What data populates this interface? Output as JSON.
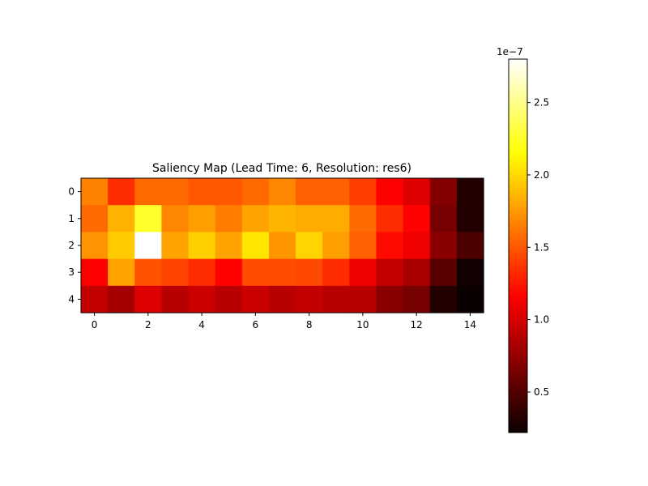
{
  "chart_data": {
    "type": "heatmap",
    "title": "Saliency Map (Lead Time: 6, Resolution: res6)",
    "colormap": "hot",
    "xlabel": "",
    "ylabel": "",
    "x_ticks": [
      0,
      2,
      4,
      6,
      8,
      10,
      12,
      14
    ],
    "y_ticks": [
      0,
      1,
      2,
      3,
      4
    ],
    "rows": 5,
    "cols": 15,
    "vmin": 2.2e-08,
    "vmax": 2.8e-07,
    "values": [
      [
        1.66e-07,
        1.33e-07,
        1.57e-07,
        1.57e-07,
        1.5e-07,
        1.5e-07,
        1.57e-07,
        1.68e-07,
        1.53e-07,
        1.53e-07,
        1.4e-07,
        1.13e-07,
        1e-07,
        6.7e-08,
        3.1e-08
      ],
      [
        1.57e-07,
        1.85e-07,
        2.25e-07,
        1.68e-07,
        1.77e-07,
        1.64e-07,
        1.79e-07,
        1.86e-07,
        1.82e-07,
        1.82e-07,
        1.57e-07,
        1.33e-07,
        1.17e-07,
        6.2e-08,
        3.1e-08
      ],
      [
        1.73e-07,
        1.94e-07,
        2.8e-07,
        1.79e-07,
        1.96e-07,
        1.79e-07,
        2.05e-07,
        1.74e-07,
        1.98e-07,
        1.77e-07,
        1.53e-07,
        1.2e-07,
        1.07e-07,
        6.9e-08,
        4.6e-08
      ],
      [
        1.13e-07,
        1.79e-07,
        1.48e-07,
        1.42e-07,
        1.33e-07,
        1.17e-07,
        1.46e-07,
        1.46e-07,
        1.44e-07,
        1.33e-07,
        1.07e-07,
        9e-08,
        8e-08,
        5.1e-08,
        2.5e-08
      ],
      [
        9e-08,
        7.9e-08,
        1e-07,
        8.6e-08,
        9.3e-08,
        8.6e-08,
        9.3e-08,
        8.6e-08,
        9e-08,
        8.6e-08,
        8.6e-08,
        6.9e-08,
        6.2e-08,
        3.1e-08,
        2.2e-08
      ]
    ],
    "colorbar": {
      "ticks": [
        0.5,
        1.0,
        1.5,
        2.0,
        2.5
      ],
      "tick_labels": [
        "0.5",
        "1.0",
        "1.5",
        "2.0",
        "2.5"
      ],
      "offset_label": "1e−7"
    }
  }
}
